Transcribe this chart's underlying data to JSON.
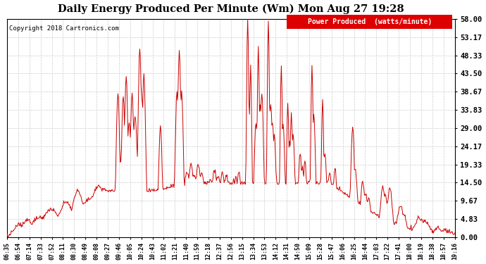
{
  "title": "Daily Energy Produced Per Minute (Wm) Mon Aug 27 19:28",
  "copyright": "Copyright 2018 Cartronics.com",
  "legend_label": "Power Produced  (watts/minute)",
  "legend_bg": "#dd0000",
  "legend_text_color": "#ffffff",
  "line_color": "#cc0000",
  "background_color": "#ffffff",
  "grid_color": "#cccccc",
  "ylim": [
    0,
    58.0
  ],
  "yticks": [
    0.0,
    4.83,
    9.67,
    14.5,
    19.33,
    24.17,
    29.0,
    33.83,
    38.67,
    43.5,
    48.33,
    53.17,
    58.0
  ],
  "x_labels": [
    "06:35",
    "06:54",
    "07:14",
    "07:33",
    "07:52",
    "08:11",
    "08:30",
    "08:49",
    "09:08",
    "09:27",
    "09:46",
    "10:05",
    "10:24",
    "10:43",
    "11:02",
    "11:21",
    "11:40",
    "11:59",
    "12:18",
    "12:37",
    "12:56",
    "13:15",
    "13:34",
    "13:53",
    "14:12",
    "14:31",
    "14:50",
    "15:09",
    "15:28",
    "15:47",
    "16:06",
    "16:25",
    "16:44",
    "17:03",
    "17:22",
    "17:41",
    "18:00",
    "18:19",
    "18:38",
    "18:57",
    "19:16"
  ]
}
